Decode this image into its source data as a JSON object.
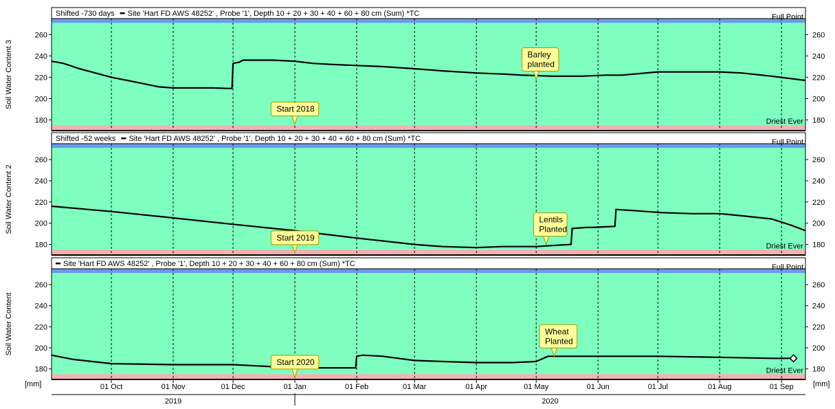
{
  "colors": {
    "plot_bg": "#7effc0",
    "full_band": "#6a9bea",
    "driest_band": "#f4b1b1",
    "line": "#000000",
    "annotation_bg": "#ffff99",
    "annotation_border": "#9a9a00",
    "grid": "#000000"
  },
  "units": {
    "left": "[mm]",
    "right": "[mm]"
  },
  "x_axis": {
    "tick_labels": [
      "01 Oct",
      "01 Nov",
      "01 Dec",
      "01 Jan",
      "01 Feb",
      "01 Mar",
      "01 Apr",
      "01 May",
      "01 Jun",
      "01 Jul",
      "01 Aug",
      "01 Sep"
    ],
    "tick_days": [
      14,
      45,
      75,
      106,
      137,
      166,
      197,
      227,
      258,
      288,
      319,
      350
    ],
    "domain_days": [
      -16,
      362
    ],
    "years": [
      {
        "label": "2019",
        "day_start": -16,
        "day_end": 106
      },
      {
        "label": "2020",
        "day_start": 106,
        "day_end": 362
      }
    ]
  },
  "y_axis": {
    "ylim": [
      170,
      275
    ],
    "ticks": [
      180,
      200,
      220,
      240,
      260
    ]
  },
  "chart_data": [
    {
      "type": "line",
      "ylabel": "Soil Water Content 3",
      "header_prefix": "Shifted -730 days",
      "legend": "Site 'Hart FD AWS 48252' , Probe '1', Depth 10 + 20 + 30 + 40 + 60 + 80 cm (Sum)   *TC",
      "full_point": {
        "label": "Full Point",
        "band": [
          271,
          275
        ]
      },
      "driest_ever": {
        "label": "Driest Ever",
        "band": [
          170,
          175
        ]
      },
      "annotations": [
        {
          "text": [
            "Start 2018"
          ],
          "x": 106,
          "y": 176
        },
        {
          "text": [
            "Barley",
            "planted"
          ],
          "x": 227,
          "y": 218
        }
      ],
      "series": [
        {
          "x": [
            -16,
            -10,
            -2,
            6,
            14,
            22,
            30,
            38,
            45,
            55,
            65,
            72,
            74.5,
            75,
            78,
            80,
            85,
            95,
            106,
            115,
            125,
            137,
            150,
            166,
            180,
            197,
            210,
            220,
            235,
            250,
            262,
            270,
            288,
            300,
            319,
            330,
            345,
            362
          ],
          "y": [
            235,
            233,
            228,
            224,
            220,
            217,
            214,
            211,
            210,
            210,
            210,
            209.5,
            209.5,
            233,
            234,
            236,
            236,
            236,
            235,
            233,
            232,
            231,
            230,
            228,
            226,
            224,
            223,
            222,
            221,
            221,
            222,
            222,
            225,
            225,
            225,
            224,
            221,
            217
          ]
        }
      ]
    },
    {
      "type": "line",
      "ylabel": "Soil Water Content 2",
      "header_prefix": "Shifted -52 weeks",
      "legend": "Site 'Hart FD AWS 48252' , Probe '1', Depth 10 + 20 + 30 + 40 + 60 + 80 cm (Sum)   *TC",
      "full_point": {
        "label": "Full Point",
        "band": [
          271,
          275
        ]
      },
      "driest_ever": {
        "label": "Driest Ever",
        "band": [
          170,
          175
        ]
      },
      "annotations": [
        {
          "text": [
            "Start 2019"
          ],
          "x": 106,
          "y": 172
        },
        {
          "text": [
            "Lentils",
            "Planted"
          ],
          "x": 232,
          "y": 180
        }
      ],
      "series": [
        {
          "x": [
            -16,
            14,
            45,
            75,
            106,
            137,
            166,
            180,
            197,
            210,
            227,
            240,
            244.5,
            245,
            252,
            255,
            266.5,
            267,
            275,
            290,
            305,
            319,
            330,
            345,
            355,
            362
          ],
          "y": [
            216,
            211,
            205,
            199,
            193,
            186,
            180,
            178,
            177,
            178,
            178,
            179.5,
            180,
            195,
            196,
            196,
            197,
            213,
            212,
            210,
            209,
            209,
            207,
            204,
            198,
            193
          ]
        }
      ]
    },
    {
      "type": "line",
      "ylabel": "Soil Water Content",
      "header_prefix": "",
      "legend": "Site 'Hart FD AWS 48252' , Probe '1', Depth 10 + 20 + 30 + 40 + 60 + 80 cm (Sum)   *TC",
      "full_point": {
        "label": "Full Point",
        "band": [
          271,
          275
        ]
      },
      "driest_ever": {
        "label": "Driest Ever",
        "band": [
          170,
          175
        ]
      },
      "annotations": [
        {
          "text": [
            "Start 2020"
          ],
          "x": 106,
          "y": 172
        },
        {
          "text": [
            "Wheat",
            "Planted"
          ],
          "x": 236,
          "y": 192
        }
      ],
      "series": [
        {
          "x": [
            -16,
            -5,
            14,
            45,
            75,
            106,
            120,
            136.5,
            137,
            140,
            150,
            166,
            180,
            197,
            215,
            227,
            233,
            240,
            258,
            288,
            319,
            345,
            356
          ],
          "y": [
            193,
            189,
            185,
            184,
            184,
            181,
            181,
            181,
            192,
            193,
            192,
            188,
            187,
            186,
            186,
            187,
            192,
            192,
            192,
            192,
            191,
            190,
            190
          ]
        }
      ],
      "end_marker": {
        "x": 356,
        "y": 190
      }
    }
  ]
}
